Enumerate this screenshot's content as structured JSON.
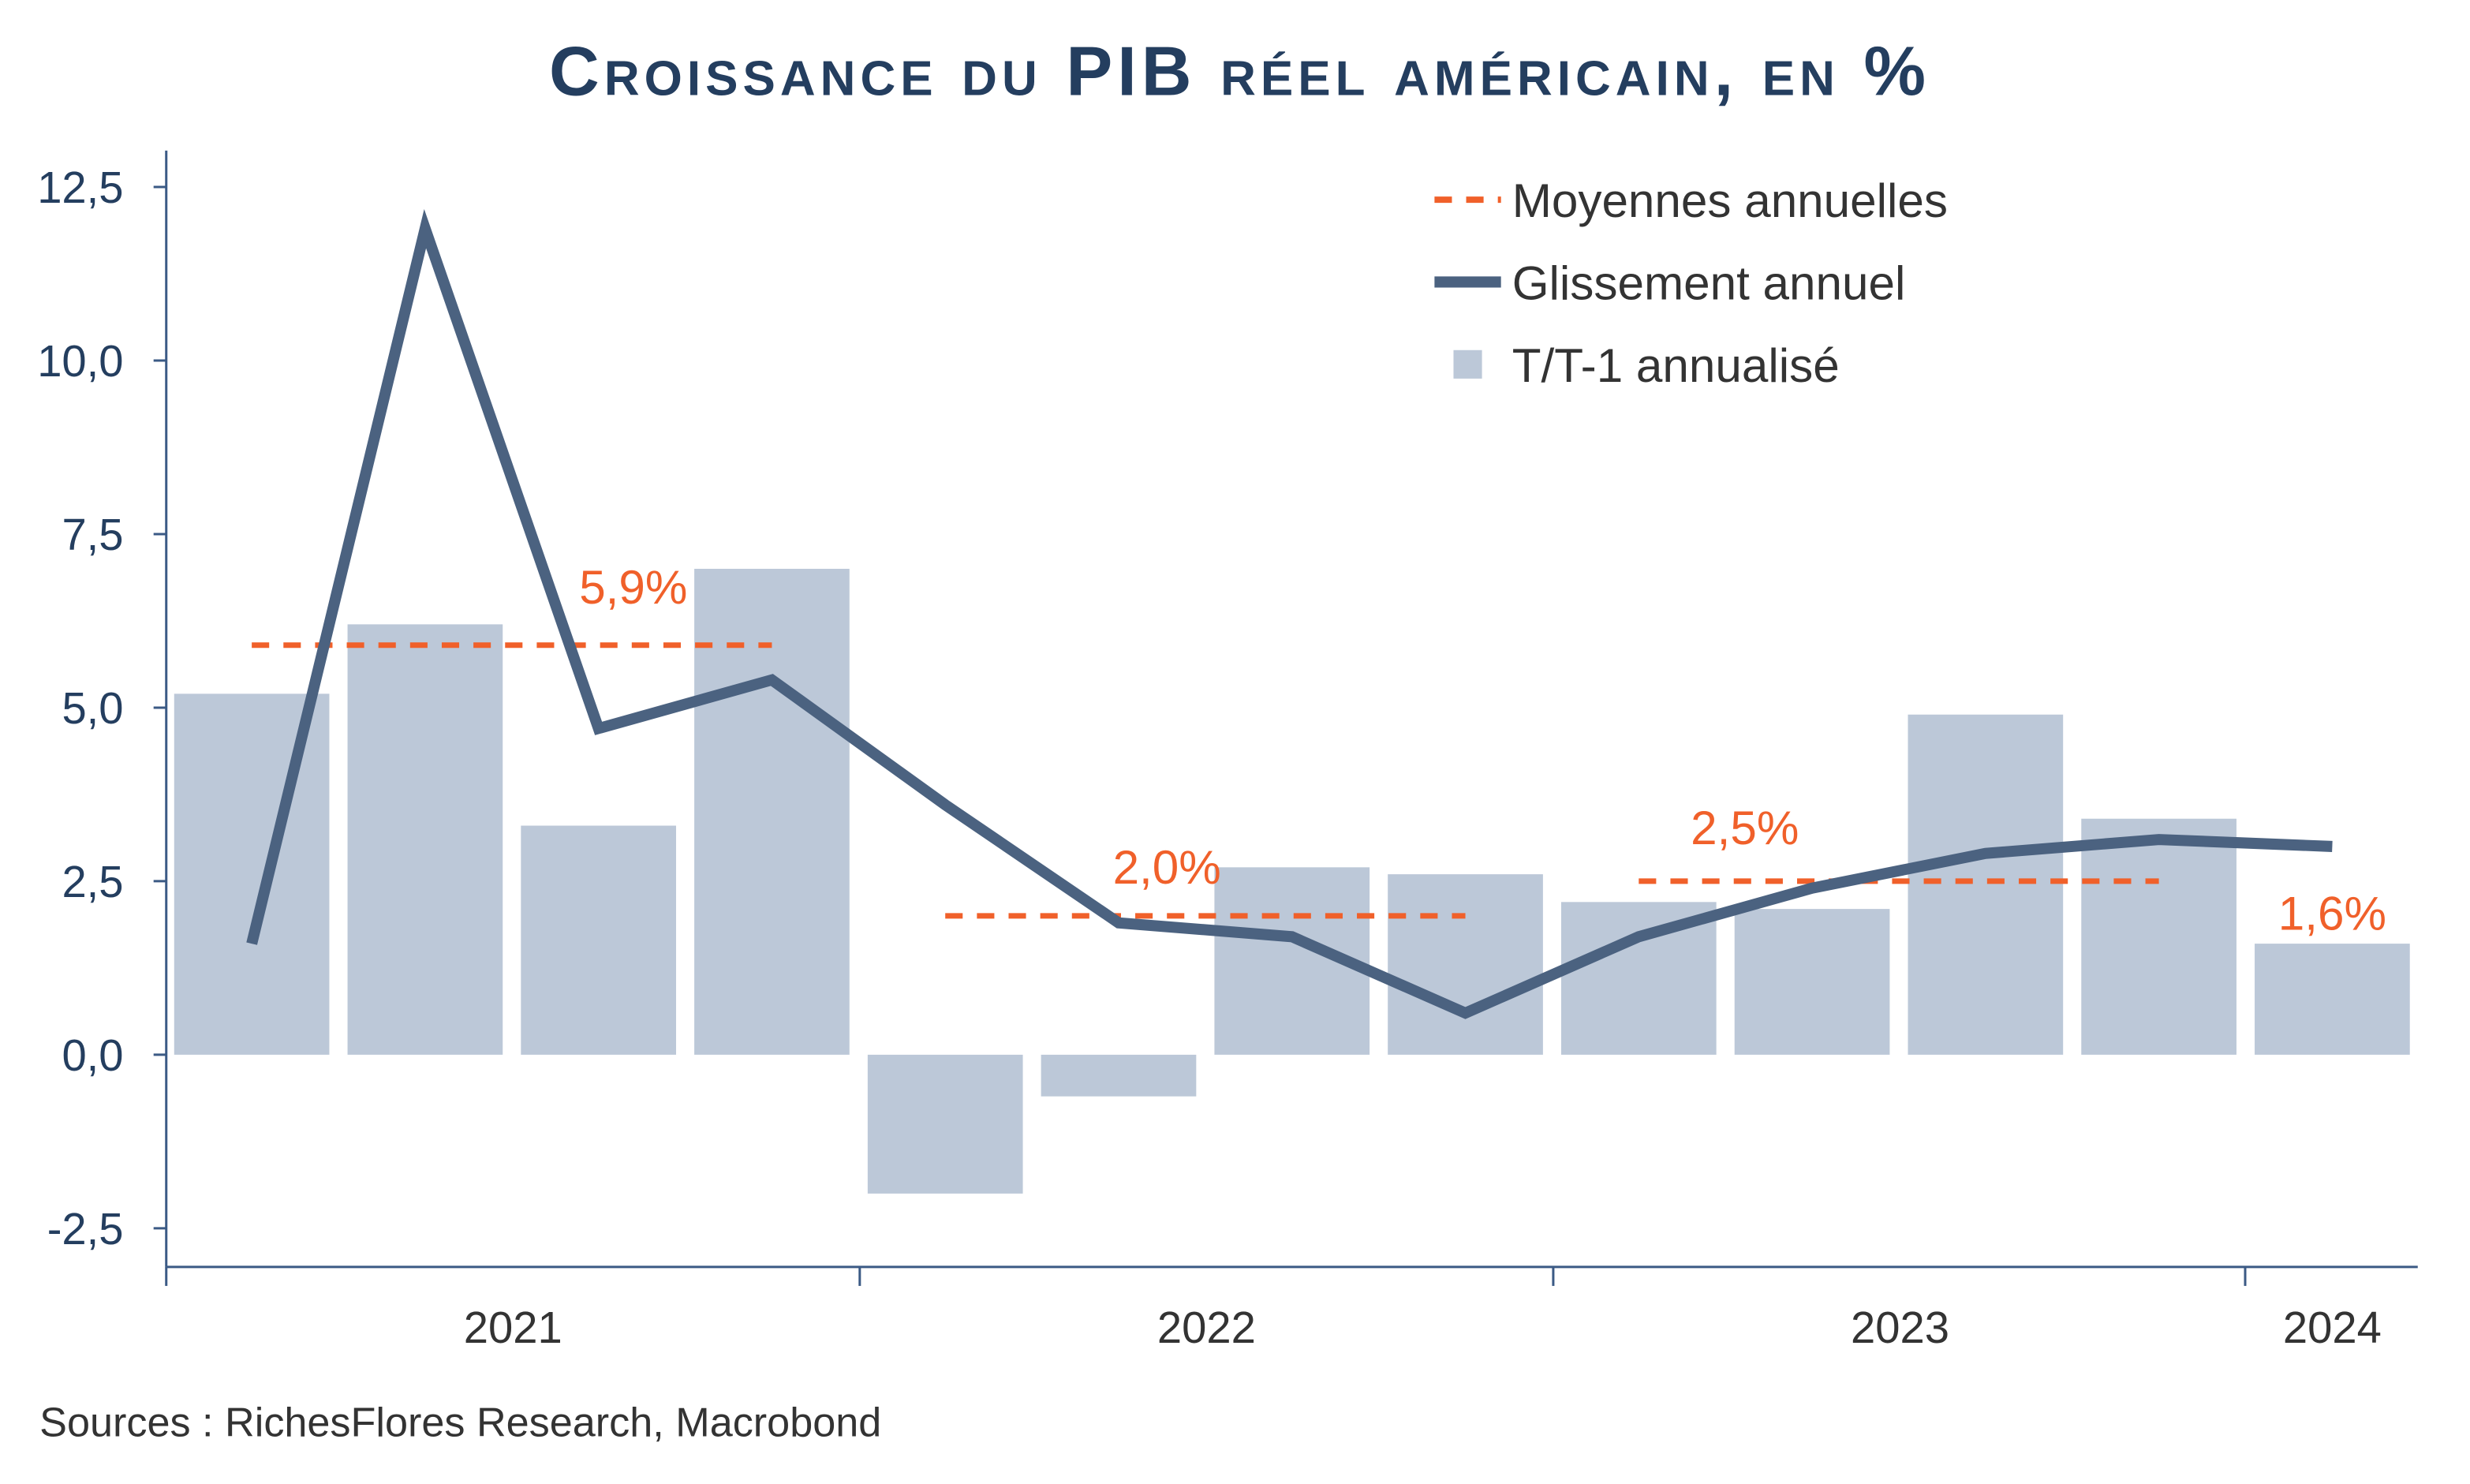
{
  "chart_data": {
    "type": "bar",
    "title": "Croissance du PIB réel américain, en %",
    "source": "Sources : RichesFlores Research, Macrobond",
    "ylim": [
      -2.5,
      12.5
    ],
    "yticks": [
      "12,5",
      "10,0",
      "7,5",
      "5,0",
      "2,5",
      "0,0",
      "-2,5"
    ],
    "ytick_values": [
      12.5,
      10,
      7.5,
      5,
      2.5,
      0,
      -2.5
    ],
    "x_year_labels": [
      "2021",
      "2022",
      "2023",
      "2024"
    ],
    "quarters": [
      "2021 T1",
      "2021 T2",
      "2021 T3",
      "2021 T4",
      "2022 T1",
      "2022 T2",
      "2022 T3",
      "2022 T4",
      "2023 T1",
      "2023 T2",
      "2023 T3",
      "2023 T4",
      "2024 T1"
    ],
    "grid": false,
    "legend_position": "top-right",
    "series": [
      {
        "name": "T/T-1 annualisé",
        "type": "bar",
        "color": "#bcc8d8",
        "values": [
          5.2,
          6.2,
          3.3,
          7.0,
          -2.0,
          -0.6,
          2.7,
          2.6,
          2.2,
          2.1,
          4.9,
          3.4,
          1.6
        ]
      },
      {
        "name": "Glissement annuel",
        "type": "line",
        "color": "#4b6280",
        "values": [
          1.6,
          11.9,
          4.7,
          5.4,
          3.6,
          1.9,
          1.7,
          0.6,
          1.7,
          2.4,
          2.9,
          3.1,
          3.0
        ]
      },
      {
        "name": "Moyennes annuelles",
        "type": "dashed",
        "color": "#f0602a",
        "segments": [
          {
            "year": "2021",
            "value": 5.9,
            "label": "5,9%",
            "from_quarter": 0,
            "to_quarter": 3
          },
          {
            "year": "2022",
            "value": 2.0,
            "label": "2,0%",
            "from_quarter": 4,
            "to_quarter": 7
          },
          {
            "year": "2023",
            "value": 2.5,
            "label": "2,5%",
            "from_quarter": 8,
            "to_quarter": 11
          },
          {
            "year": "2024",
            "value": 1.6,
            "label": "1,6%",
            "from_quarter": 12,
            "to_quarter": 12,
            "label_only": true
          }
        ]
      }
    ]
  }
}
